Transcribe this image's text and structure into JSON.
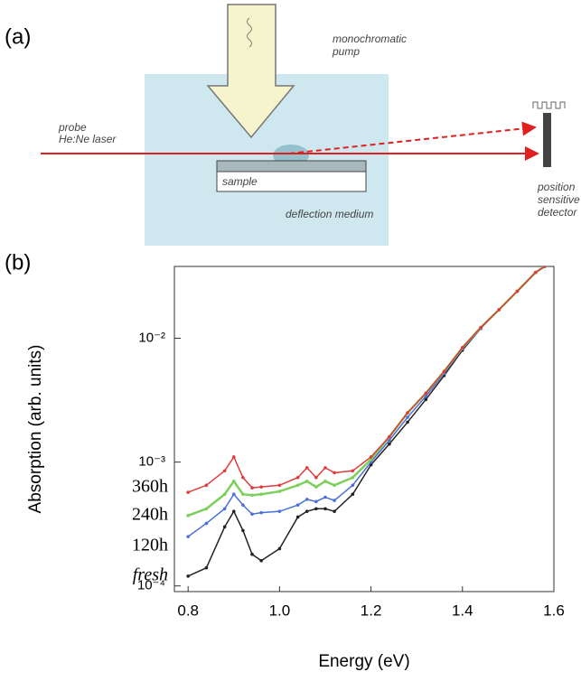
{
  "panel_a": {
    "label": "(a)",
    "pump": [
      "monochromatic",
      "pump"
    ],
    "probe": [
      "probe",
      "He:Ne laser"
    ],
    "sample": "sample",
    "medium": "deflection medium",
    "detector": [
      "position",
      "sensitive",
      "detector"
    ]
  },
  "chart_data": {
    "type": "line",
    "panel_label": "(b)",
    "xlabel": "Energy (eV)",
    "ylabel": "Absorption (arb. units)",
    "log_y": true,
    "x": [
      0.8,
      0.84,
      0.88,
      0.9,
      0.92,
      0.94,
      0.96,
      1.0,
      1.04,
      1.06,
      1.08,
      1.1,
      1.12,
      1.16,
      1.2,
      1.24,
      1.28,
      1.32,
      1.36,
      1.4,
      1.44,
      1.48,
      1.52,
      1.56,
      1.58
    ],
    "series": [
      {
        "name": "fresh",
        "color": "#222222",
        "values": [
          0.00012,
          0.00014,
          0.0003,
          0.0004,
          0.00028,
          0.00018,
          0.00016,
          0.0002,
          0.00036,
          0.0004,
          0.00042,
          0.00042,
          0.0004,
          0.00055,
          0.00095,
          0.0014,
          0.0021,
          0.0032,
          0.005,
          0.008,
          0.012,
          0.017,
          0.024,
          0.034,
          0.038
        ]
      },
      {
        "name": "120h",
        "color": "#4a6fd8",
        "values": [
          0.00025,
          0.00032,
          0.00042,
          0.00055,
          0.00045,
          0.00038,
          0.00039,
          0.0004,
          0.00045,
          0.0005,
          0.00048,
          0.00052,
          0.00049,
          0.00065,
          0.001,
          0.0015,
          0.0023,
          0.0034,
          0.0052,
          0.0082,
          0.012,
          0.017,
          0.024,
          0.034,
          0.038
        ]
      },
      {
        "name": "240h",
        "color": "#7ccf5a",
        "values": [
          0.00037,
          0.00042,
          0.00055,
          0.0007,
          0.00055,
          0.00054,
          0.00055,
          0.00058,
          0.00065,
          0.0007,
          0.00063,
          0.0007,
          0.00065,
          0.00075,
          0.00105,
          0.0016,
          0.0025,
          0.0036,
          0.0054,
          0.0084,
          0.0122,
          0.017,
          0.024,
          0.034,
          0.038
        ]
      },
      {
        "name": "360h",
        "color": "#e03a3a",
        "values": [
          0.00057,
          0.00065,
          0.00085,
          0.0011,
          0.00075,
          0.00062,
          0.00063,
          0.00065,
          0.00075,
          0.0009,
          0.00075,
          0.0009,
          0.00082,
          0.00085,
          0.0011,
          0.0016,
          0.0025,
          0.0036,
          0.0054,
          0.0084,
          0.0122,
          0.017,
          0.024,
          0.034,
          0.038
        ]
      }
    ],
    "xlim": [
      0.77,
      1.6
    ],
    "xticks": [
      0.8,
      {
        "value": 1,
        "label": "1.0"
      },
      1.2,
      1.4,
      1.6
    ],
    "ylim": [
      9e-05,
      0.038
    ],
    "yticks": [
      {
        "value": 0.0001,
        "label": "10⁻⁴"
      },
      {
        "value": 0.001,
        "label": "10⁻³"
      },
      {
        "value": 0.01,
        "label": "10⁻²"
      }
    ]
  }
}
